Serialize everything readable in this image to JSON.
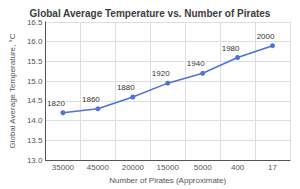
{
  "chart_data": {
    "type": "line",
    "title": "Global Average Temperature vs. Number of Pirates",
    "xlabel": "Number of Pirates (Approximate)",
    "ylabel": "Global Average Temperature, °C",
    "categories": [
      "35000",
      "45000",
      "20000",
      "15000",
      "5000",
      "400",
      "17"
    ],
    "values": [
      14.2,
      14.3,
      14.6,
      14.95,
      15.2,
      15.6,
      15.9
    ],
    "annotations": [
      "1820",
      "1860",
      "1880",
      "1920",
      "1940",
      "1980",
      "2000"
    ],
    "ylim": [
      13.0,
      16.5
    ],
    "yticks": [
      {
        "value": 13.0,
        "label": "13.0"
      },
      13.5,
      {
        "value": 14.0,
        "label": "14.0"
      },
      14.5,
      {
        "value": 15.0,
        "label": "15.0"
      },
      15.5,
      {
        "value": 16.0,
        "label": "16.0"
      },
      16.5
    ],
    "marker": "circle",
    "grid": true
  }
}
